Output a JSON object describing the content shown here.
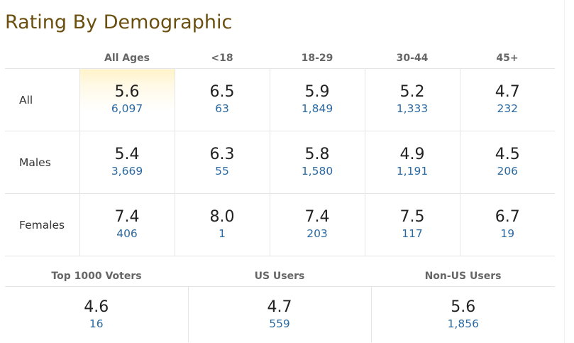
{
  "title": "Rating By Demographic",
  "columns": [
    "All Ages",
    "<18",
    "18-29",
    "30-44",
    "45+"
  ],
  "rows": [
    {
      "label": "All",
      "cells": [
        {
          "rating": "5.6",
          "votes": "6,097"
        },
        {
          "rating": "6.5",
          "votes": "63"
        },
        {
          "rating": "5.9",
          "votes": "1,849"
        },
        {
          "rating": "5.2",
          "votes": "1,333"
        },
        {
          "rating": "4.7",
          "votes": "232"
        }
      ]
    },
    {
      "label": "Males",
      "cells": [
        {
          "rating": "5.4",
          "votes": "3,669"
        },
        {
          "rating": "6.3",
          "votes": "55"
        },
        {
          "rating": "5.8",
          "votes": "1,580"
        },
        {
          "rating": "4.9",
          "votes": "1,191"
        },
        {
          "rating": "4.5",
          "votes": "206"
        }
      ]
    },
    {
      "label": "Females",
      "cells": [
        {
          "rating": "7.4",
          "votes": "406"
        },
        {
          "rating": "8.0",
          "votes": "1"
        },
        {
          "rating": "7.4",
          "votes": "203"
        },
        {
          "rating": "7.5",
          "votes": "117"
        },
        {
          "rating": "6.7",
          "votes": "19"
        }
      ]
    }
  ],
  "summary": [
    {
      "label": "Top 1000 Voters",
      "rating": "4.6",
      "votes": "16"
    },
    {
      "label": "US Users",
      "rating": "4.7",
      "votes": "559"
    },
    {
      "label": "Non-US Users",
      "rating": "5.6",
      "votes": "1,856"
    }
  ],
  "colors": {
    "title": "#6b4f0f",
    "votes_link": "#2b6aa1",
    "highlight": "#fff3c8"
  }
}
